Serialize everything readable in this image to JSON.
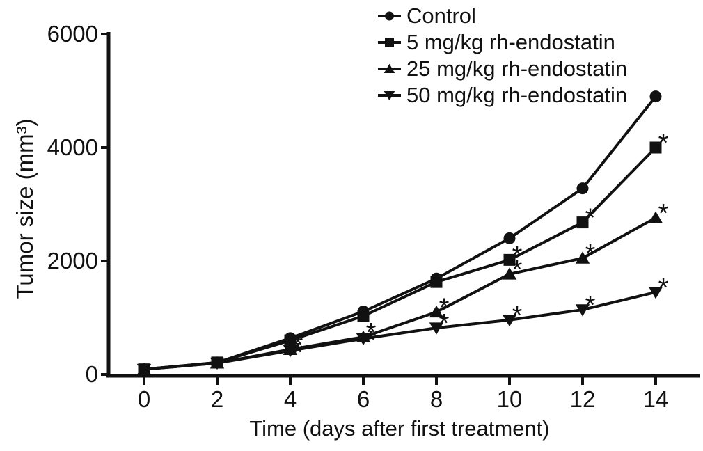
{
  "figure": {
    "background": "#ffffff",
    "ink": "#111111"
  },
  "chart_data": {
    "type": "line",
    "title": "",
    "xlabel": "Time (days after first treatment)",
    "ylabel": "Tumor size (mm³)",
    "x": [
      0,
      2,
      4,
      6,
      8,
      10,
      12,
      14
    ],
    "xticks": [
      0,
      2,
      4,
      6,
      8,
      10,
      12,
      14
    ],
    "yticks": [
      0,
      2000,
      4000,
      6000
    ],
    "xlim": [
      0,
      15
    ],
    "ylim": [
      0,
      6000
    ],
    "grid": false,
    "legend_position": "top-right",
    "significance_symbol": "*",
    "series": [
      {
        "name": "Control",
        "marker": "circle",
        "color": "#111111",
        "values": [
          90,
          210,
          640,
          1110,
          1690,
          2400,
          3280,
          4900
        ],
        "significant_days": []
      },
      {
        "name": "5 mg/kg rh-endostatin",
        "marker": "square",
        "color": "#111111",
        "values": [
          90,
          210,
          600,
          1030,
          1630,
          2020,
          2680,
          4000
        ],
        "significant_days": [
          10,
          12,
          14
        ]
      },
      {
        "name": "25 mg/kg rh-endostatin",
        "marker": "triangle-up",
        "color": "#111111",
        "values": [
          90,
          200,
          440,
          660,
          1100,
          1770,
          2050,
          2760
        ],
        "significant_days": [
          4,
          6,
          8,
          10,
          12,
          14
        ]
      },
      {
        "name": "50 mg/kg rh-endostatin",
        "marker": "triangle-down",
        "color": "#111111",
        "values": [
          90,
          200,
          420,
          630,
          820,
          960,
          1140,
          1450
        ],
        "significant_days": [
          4,
          6,
          8,
          10,
          12,
          14
        ]
      }
    ]
  }
}
